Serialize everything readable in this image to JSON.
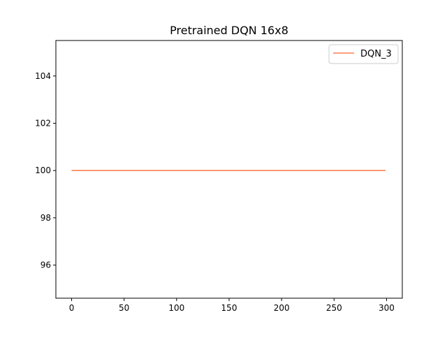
{
  "chart_data": {
    "type": "line",
    "title": "Pretrained DQN 16x8",
    "xlabel": "",
    "ylabel": "",
    "xlim": [
      -15,
      315
    ],
    "ylim": [
      94.6,
      105.5
    ],
    "xticks": [
      0,
      50,
      100,
      150,
      200,
      250,
      300
    ],
    "yticks": [
      96,
      98,
      100,
      102,
      104
    ],
    "grid": false,
    "legend_position": "top-right",
    "series": [
      {
        "name": "DQN_3",
        "color": "#ff7f50",
        "x": [
          0,
          299
        ],
        "y": [
          100,
          100
        ]
      }
    ]
  }
}
